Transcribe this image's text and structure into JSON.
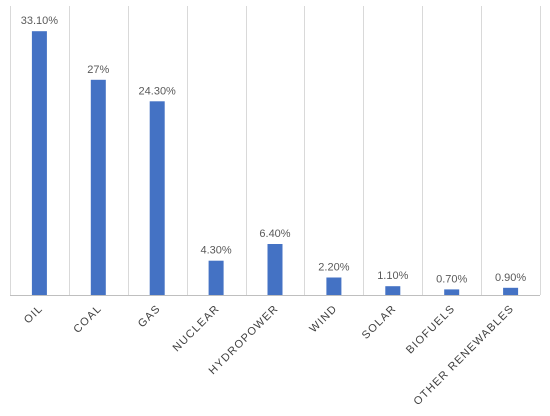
{
  "chart_data": {
    "type": "bar",
    "title": "",
    "xlabel": "",
    "ylabel": "",
    "categories": [
      "OIL",
      "COAL",
      "GAS",
      "NUCLEAR",
      "HYDROPOWER",
      "WIND",
      "SOLAR",
      "BIOFUELS",
      "OTHER RENEWABLES"
    ],
    "values": [
      33.1,
      27,
      24.3,
      4.3,
      6.4,
      2.2,
      1.1,
      0.7,
      0.9
    ],
    "data_labels": [
      "33.10%",
      "27%",
      "24.30%",
      "4.30%",
      "6.40%",
      "2.20%",
      "1.10%",
      "0.70%",
      "0.90%"
    ],
    "ylim": [
      0,
      33.5
    ],
    "grid": "vertical category separators only",
    "legend": "none",
    "colors": {
      "bar": "#4472C4",
      "grid": "#D9D9D9",
      "axis": "#BFBFBF",
      "label": "#595959",
      "category": "#404040"
    }
  }
}
